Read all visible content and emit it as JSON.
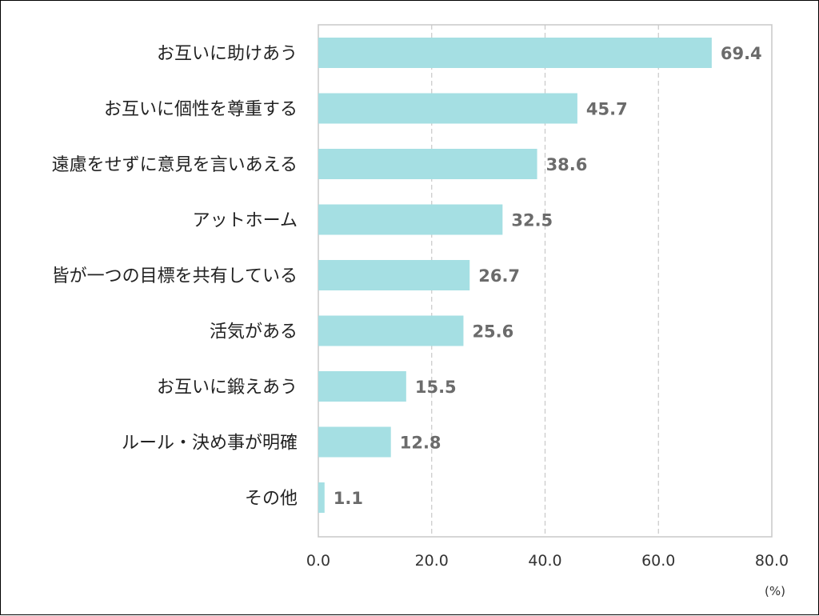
{
  "chart_data": {
    "type": "bar",
    "orientation": "horizontal",
    "categories": [
      "お互いに助けあう",
      "お互いに個性を尊重する",
      "遠慮をせずに意見を言いあえる",
      "アットホーム",
      "皆が一つの目標を共有している",
      "活気がある",
      "お互いに鍛えあう",
      "ルール・決め事が明確",
      "その他"
    ],
    "values": [
      69.4,
      45.7,
      38.6,
      32.5,
      26.7,
      25.6,
      15.5,
      12.8,
      1.1
    ],
    "value_labels": [
      "69.4",
      "45.7",
      "38.6",
      "32.5",
      "26.7",
      "25.6",
      "15.5",
      "12.8",
      "1.1"
    ],
    "xlim": [
      0,
      80
    ],
    "x_ticks": [
      0,
      20,
      40,
      60,
      80
    ],
    "x_tick_labels": [
      "0.0",
      "20.0",
      "40.0",
      "60.0",
      "80.0"
    ],
    "unit": "(%)",
    "title": "",
    "xlabel": "",
    "ylabel": "",
    "grid": "vertical dashed",
    "legend": "none",
    "colors": {
      "bar": "#a5dfe3",
      "value_label": "#6b6b6b",
      "grid": "#c8c8c8",
      "plot_border": "#c8c8c8"
    }
  }
}
